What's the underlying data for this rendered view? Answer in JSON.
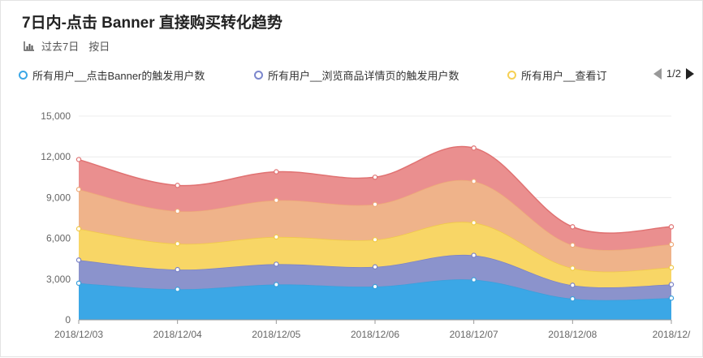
{
  "header": {
    "title": "7日内-点击 Banner 直接购买转化趋势",
    "range_label": "过去7日",
    "granularity_label": "按日"
  },
  "legend": {
    "items": [
      {
        "label": "所有用户__点击Banner的触发用户数",
        "color": "#3ba7e6"
      },
      {
        "label": "所有用户__浏览商品详情页的触发用户数",
        "color": "#7c87cd"
      },
      {
        "label": "所有用户__查看订",
        "color": "#f6d054"
      }
    ],
    "page": "1/2"
  },
  "chart_data": {
    "type": "area",
    "stacked": true,
    "categories": [
      "2018/12/03",
      "2018/12/04",
      "2018/12/05",
      "2018/12/06",
      "2018/12/07",
      "2018/12/08",
      "2018/12/"
    ],
    "ylim": [
      0,
      15000
    ],
    "yticks": [
      "0",
      "3,000",
      "6,000",
      "9,000",
      "12,000",
      "15,000"
    ],
    "ytick_values": [
      0,
      3000,
      6000,
      9000,
      12000,
      15000
    ],
    "grid": true,
    "series": [
      {
        "color": "#3ba7e6",
        "stroke": "#3aa0dc",
        "values": [
          2700,
          2250,
          2600,
          2450,
          2950,
          1550,
          1600
        ]
      },
      {
        "color": "#8b93cc",
        "stroke": "#7a82c6",
        "values": [
          1700,
          1450,
          1500,
          1450,
          1800,
          1000,
          1000
        ]
      },
      {
        "color": "#f8d666",
        "stroke": "#f0c948",
        "values": [
          2300,
          1900,
          2000,
          2000,
          2400,
          1250,
          1250
        ]
      },
      {
        "color": "#efb38a",
        "stroke": "#eea978",
        "values": [
          2900,
          2400,
          2700,
          2600,
          3050,
          1700,
          1700
        ]
      },
      {
        "color": "#ea8f8f",
        "stroke": "#e07272",
        "values": [
          2200,
          1900,
          2100,
          2000,
          2450,
          1350,
          1300
        ]
      }
    ]
  }
}
